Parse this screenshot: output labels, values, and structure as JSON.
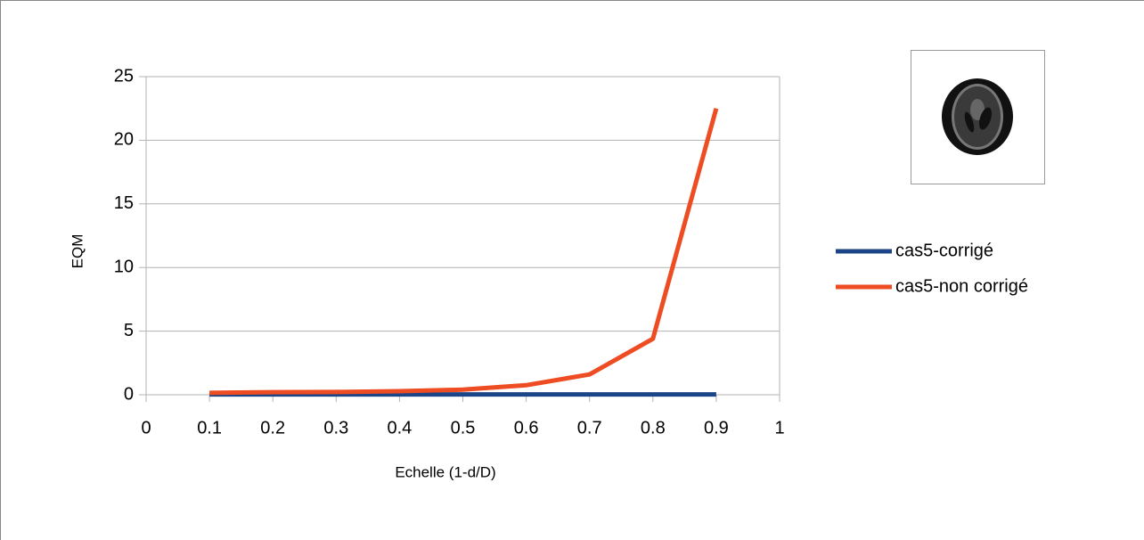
{
  "chart_data": {
    "type": "line",
    "x_label": "Echelle (1-d/D)",
    "y_label": "EQM",
    "x": [
      0.1,
      0.2,
      0.3,
      0.4,
      0.5,
      0.6,
      0.7,
      0.8,
      0.9
    ],
    "series": [
      {
        "name": "cas5-corrigé",
        "color": "#1c4587",
        "values": [
          0.03,
          0.03,
          0.03,
          0.03,
          0.03,
          0.03,
          0.03,
          0.03,
          0.03
        ]
      },
      {
        "name": "cas5-non corrigé",
        "color": "#ee4c22",
        "values": [
          0.15,
          0.2,
          0.22,
          0.28,
          0.4,
          0.75,
          1.6,
          4.4,
          22.5
        ]
      }
    ],
    "xlim": [
      0,
      1
    ],
    "xticks": [
      0,
      0.1,
      0.2,
      0.3,
      0.4,
      0.5,
      0.6,
      0.7,
      0.8,
      0.9,
      1
    ],
    "ylim": [
      0,
      25
    ],
    "yticks": [
      0,
      5,
      10,
      15,
      20,
      25
    ],
    "grid": true,
    "legend": "right"
  }
}
